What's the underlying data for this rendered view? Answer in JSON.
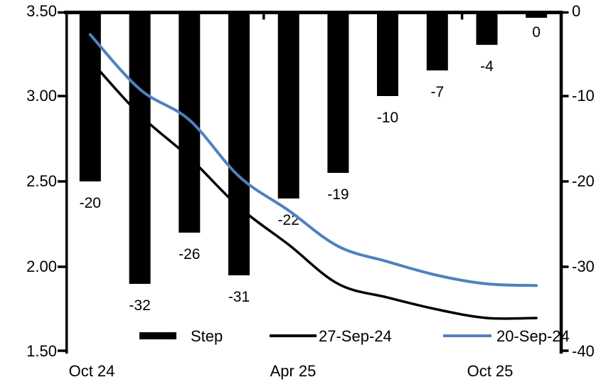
{
  "chart_data": {
    "type": "combo",
    "subtype": "bar-plus-line-dual-axis",
    "title": "",
    "n_categories": 10,
    "grid": false,
    "x_axis": {
      "tick_labels": [
        "Oct 24",
        "Apr 25",
        "Oct 25"
      ],
      "tick_category_indices": [
        0,
        4,
        8
      ],
      "boundary_tick_indices": [
        4,
        8
      ]
    },
    "left_axis": {
      "min": 1.5,
      "max": 3.5,
      "tick_labels": [
        "3.50",
        "3.00",
        "2.50",
        "2.00",
        "1.50"
      ]
    },
    "right_axis": {
      "min": -40,
      "max": 0,
      "tick_labels": [
        "0",
        "-10",
        "-20",
        "-30",
        "-40"
      ]
    },
    "bars": {
      "name": "Step",
      "axis": "right",
      "color": "#000000",
      "values": [
        -20,
        -32,
        -26,
        -31,
        -22,
        -19,
        -10,
        -7,
        -4,
        0
      ],
      "labels": [
        "-20",
        "-32",
        "-26",
        "-31",
        "-22",
        "-19",
        "-10",
        "-7",
        "-4",
        "0"
      ]
    },
    "lines": [
      {
        "name": "27-Sep-24",
        "axis": "left",
        "color": "#000000",
        "values": [
          3.21,
          2.89,
          2.64,
          2.35,
          2.13,
          1.9,
          1.82,
          1.75,
          1.7,
          1.7
        ]
      },
      {
        "name": "20-Sep-24",
        "axis": "left",
        "color": "#4f81bd",
        "values": [
          3.36,
          3.04,
          2.86,
          2.53,
          2.33,
          2.12,
          2.03,
          1.95,
          1.9,
          1.89
        ]
      }
    ],
    "legend": {
      "position": "bottom",
      "entries": [
        {
          "label": "Step",
          "type": "bar",
          "color": "#000000"
        },
        {
          "label": "27-Sep-24",
          "type": "line",
          "color": "#000000"
        },
        {
          "label": "20-Sep-24",
          "type": "line",
          "color": "#4f81bd"
        }
      ]
    }
  }
}
